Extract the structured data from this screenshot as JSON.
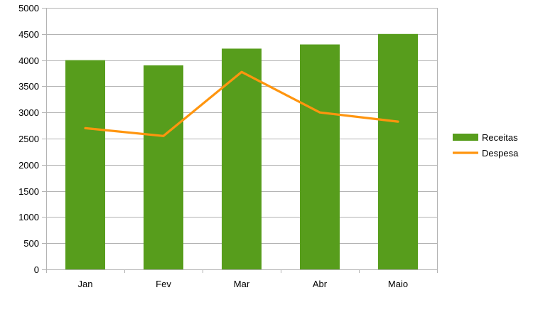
{
  "chart_data": {
    "type": "bar",
    "categories": [
      "Jan",
      "Fev",
      "Mar",
      "Abr",
      "Maio"
    ],
    "series": [
      {
        "name": "Receitas",
        "type": "bar",
        "color": "#579d1c",
        "values": [
          4000,
          3900,
          4220,
          4300,
          4500
        ]
      },
      {
        "name": "Despesa",
        "type": "line",
        "color": "#ff950e",
        "values": [
          2700,
          2550,
          3775,
          3000,
          2825
        ]
      }
    ],
    "ylim": [
      0,
      5000
    ],
    "yticks": [
      0,
      500,
      1000,
      1500,
      2000,
      2500,
      3000,
      3500,
      4000,
      4500,
      5000
    ],
    "grid": true,
    "legend_position": "right"
  }
}
